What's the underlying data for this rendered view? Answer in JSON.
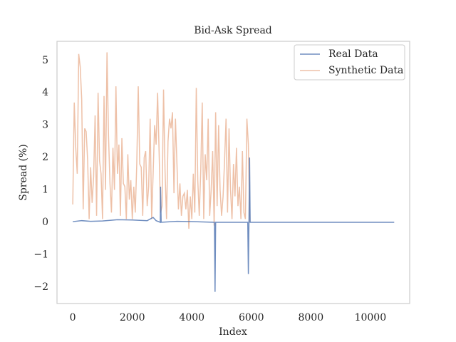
{
  "chart_data": {
    "type": "line",
    "title": "Bid-Ask Spread",
    "xlabel": "Index",
    "ylabel": "Spread (%)",
    "xlim": [
      -530,
      11320
    ],
    "xticks": [
      0,
      2000,
      4000,
      6000,
      8000,
      10000
    ],
    "ylim": [
      -2.51,
      5.59
    ],
    "yticks": [
      {
        "value": -2,
        "label": "−2"
      },
      {
        "value": -1,
        "label": "−1"
      },
      0,
      1,
      2,
      3,
      4,
      5
    ],
    "grid": false,
    "legend": "upper right",
    "series": [
      {
        "name": "Real Data",
        "color": "#4c72b0",
        "opacity": 0.8,
        "x": [
          0,
          300,
          600,
          1000,
          1500,
          2000,
          2500,
          2700,
          2800,
          2940,
          2950,
          2970,
          3500,
          4000,
          4760,
          4780,
          4800,
          5880,
          5900,
          5920,
          5940,
          5960,
          6500,
          8000,
          10800
        ],
        "values": [
          0.02,
          0.05,
          0.03,
          0.04,
          0.08,
          0.07,
          0.05,
          0.15,
          0.05,
          0.0,
          1.1,
          0.0,
          0.03,
          0.02,
          0.0,
          -2.15,
          0.0,
          0.0,
          -1.6,
          0.0,
          2.0,
          0.0,
          0.0,
          0.0,
          0.0
        ]
      },
      {
        "name": "Synthetic Data",
        "color": "#dd8452",
        "opacity": 0.5,
        "x": [
          0,
          50,
          100,
          150,
          200,
          250,
          300,
          350,
          400,
          450,
          500,
          550,
          600,
          650,
          700,
          750,
          800,
          850,
          900,
          950,
          1000,
          1050,
          1100,
          1150,
          1200,
          1250,
          1300,
          1350,
          1400,
          1450,
          1500,
          1550,
          1600,
          1650,
          1700,
          1750,
          1800,
          1850,
          1900,
          1950,
          2000,
          2050,
          2100,
          2150,
          2200,
          2250,
          2300,
          2350,
          2400,
          2450,
          2500,
          2550,
          2600,
          2650,
          2700,
          2750,
          2800,
          2850,
          2900,
          2950,
          3000,
          3050,
          3100,
          3150,
          3200,
          3250,
          3300,
          3350,
          3400,
          3450,
          3500,
          3550,
          3600,
          3650,
          3700,
          3750,
          3800,
          3850,
          3900,
          3950,
          4000,
          4050,
          4100,
          4150,
          4200,
          4250,
          4300,
          4350,
          4400,
          4450,
          4500,
          4550,
          4600,
          4650,
          4700,
          4750,
          4800,
          4850,
          4900,
          4950,
          5000,
          5050,
          5100,
          5150,
          5200,
          5250,
          5300,
          5350,
          5400,
          5450,
          5500,
          5550,
          5600,
          5650,
          5700,
          5750,
          5800,
          5850,
          5900,
          5950
        ],
        "values": [
          0.55,
          3.7,
          2.3,
          1.5,
          5.2,
          4.8,
          3.8,
          0.4,
          2.9,
          2.8,
          1.9,
          0.1,
          1.7,
          0.6,
          1.4,
          3.3,
          0.2,
          4.0,
          1.9,
          1.5,
          0.1,
          3.9,
          1.0,
          5.25,
          2.7,
          1.2,
          0.3,
          2.3,
          1.0,
          4.2,
          1.5,
          2.4,
          0.2,
          2.6,
          1.2,
          1.1,
          0.1,
          2.1,
          0.7,
          1.3,
          0.1,
          1.1,
          0.3,
          1.8,
          4.2,
          1.8,
          1.7,
          0.2,
          2.0,
          2.2,
          0.5,
          1.1,
          3.2,
          0.1,
          1.5,
          3.0,
          2.4,
          4.0,
          2.2,
          0.3,
          0.5,
          4.1,
          1.6,
          0.1,
          2.5,
          3.2,
          2.9,
          3.4,
          0.9,
          3.2,
          1.8,
          0.4,
          1.2,
          0.2,
          0.8,
          0.9,
          0.4,
          1.0,
          -0.2,
          0.8,
          0.1,
          1.5,
          0.3,
          4.15,
          1.3,
          0.2,
          1.6,
          3.7,
          0.1,
          2.1,
          1.3,
          3.2,
          0.2,
          1.0,
          2.2,
          -0.1,
          3.4,
          0.5,
          3.0,
          1.0,
          0.2,
          0.8,
          1.9,
          3.2,
          0.3,
          2.9,
          1.0,
          0.1,
          1.8,
          0.8,
          2.3,
          0.5,
          1.1,
          0.1,
          2.2,
          0.3,
          0.1,
          3.2,
          2.4,
          0.0
        ]
      }
    ]
  }
}
